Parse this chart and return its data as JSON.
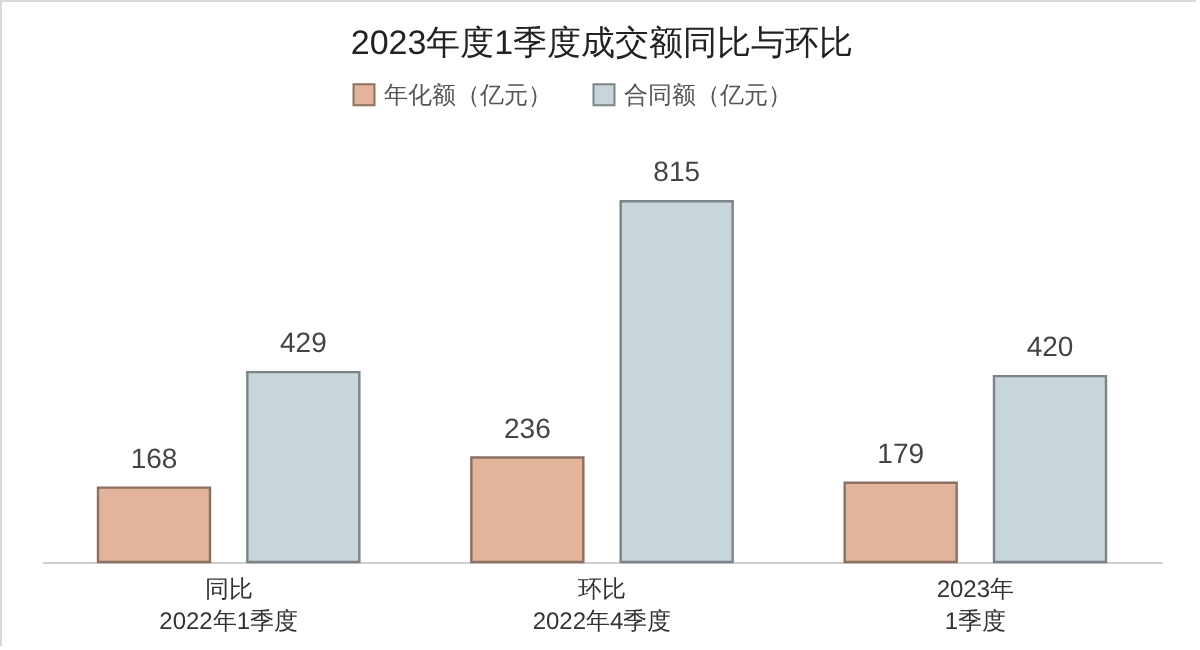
{
  "chart_data": {
    "type": "bar",
    "title": "2023年度1季度成交额同比与环比",
    "categories": [
      "同比\n2022年1季度",
      "环比\n2022年4季度",
      "2023年\n1季度"
    ],
    "series": [
      {
        "name": "年化额（亿元）",
        "color": "#e2b49c",
        "values": [
          168,
          236,
          179
        ]
      },
      {
        "name": "合同额（亿元）",
        "color": "#c8d5da",
        "values": [
          429,
          815,
          420
        ]
      }
    ],
    "data_labels": true,
    "legend": "top"
  }
}
